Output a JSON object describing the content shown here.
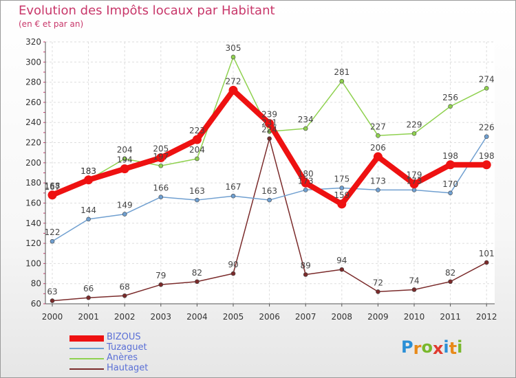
{
  "chart_data": {
    "type": "line",
    "title": "Evolution des Impôts locaux par Habitant",
    "subtitle": "(en € et par an)",
    "x": [
      "2000",
      "2001",
      "2002",
      "2003",
      "2004",
      "2005",
      "2006",
      "2007",
      "2008",
      "2009",
      "2010",
      "2011",
      "2012"
    ],
    "ylim": [
      60,
      320
    ],
    "yticks": [
      60,
      80,
      100,
      120,
      140,
      160,
      180,
      200,
      220,
      240,
      260,
      280,
      300,
      320
    ],
    "series": [
      {
        "name": "BIZOUS",
        "color": "#ee1111",
        "values": [
          168,
          183,
          194,
          205,
          223,
          272,
          239,
          180,
          159,
          206,
          179,
          198,
          198
        ]
      },
      {
        "name": "Tuzaguet",
        "color": "#6f9fd0",
        "values": [
          122,
          144,
          149,
          166,
          163,
          167,
          163,
          173,
          175,
          173,
          173,
          170,
          226
        ]
      },
      {
        "name": "Anères",
        "color": "#8fd14f",
        "values": [
          167,
          183,
          204,
          197,
          204,
          305,
          231,
          234,
          281,
          227,
          229,
          256,
          274
        ]
      },
      {
        "name": "Hautaget",
        "color": "#7a2a2a",
        "values": [
          63,
          66,
          68,
          79,
          82,
          90,
          224,
          89,
          94,
          72,
          74,
          82,
          101
        ]
      }
    ]
  },
  "logo": {
    "letters": [
      "P",
      "r",
      "o",
      "x",
      "i",
      "t",
      "i"
    ],
    "colors": [
      "#2a8fd6",
      "#e88a1a",
      "#79b82c",
      "#e03a2f",
      "#2a8fd6",
      "#e88a1a",
      "#79b82c"
    ]
  }
}
